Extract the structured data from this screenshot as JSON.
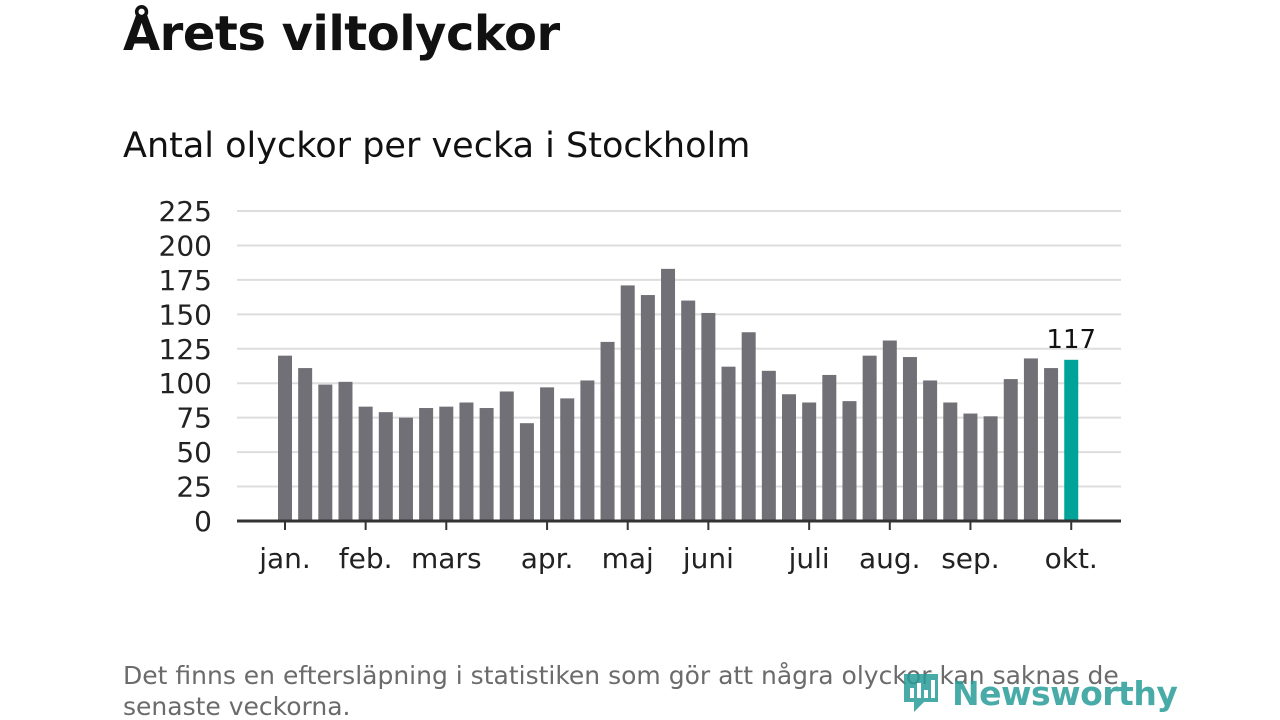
{
  "title": "Årets viltolyckor",
  "subtitle": "Antal olyckor per vecka i Stockholm",
  "footnote": "Det finns en eftersläpning i statistiken som gör att några olyckor kan saknas de senaste veckorna.",
  "brand": {
    "name": "Newsworthy",
    "icon": "newsworthy-logo-icon",
    "color": "#2a9d98"
  },
  "colors": {
    "bar": "#717076",
    "highlight": "#00a39a",
    "grid": "#dddddd",
    "axis": "#333333"
  },
  "chart_data": {
    "type": "bar",
    "title": "Antal olyckor per vecka i Stockholm",
    "xlabel": "",
    "ylabel": "",
    "ylim": [
      0,
      225
    ],
    "yticks": [
      0,
      25,
      50,
      75,
      100,
      125,
      150,
      175,
      200,
      225
    ],
    "grid": true,
    "values": [
      120,
      111,
      99,
      101,
      83,
      79,
      75,
      82,
      83,
      86,
      82,
      94,
      71,
      97,
      89,
      102,
      130,
      171,
      164,
      183,
      160,
      151,
      112,
      137,
      109,
      92,
      86,
      106,
      87,
      120,
      131,
      119,
      102,
      86,
      78,
      76,
      103,
      118,
      111,
      117
    ],
    "highlight_index": 39,
    "highlight_label": "117",
    "month_labels": [
      {
        "label": "jan.",
        "week": 0
      },
      {
        "label": "feb.",
        "week": 4
      },
      {
        "label": "mars",
        "week": 8
      },
      {
        "label": "apr.",
        "week": 13
      },
      {
        "label": "maj",
        "week": 17
      },
      {
        "label": "juni",
        "week": 21
      },
      {
        "label": "juli",
        "week": 26
      },
      {
        "label": "aug.",
        "week": 30
      },
      {
        "label": "sep.",
        "week": 34
      },
      {
        "label": "okt.",
        "week": 39
      }
    ]
  }
}
